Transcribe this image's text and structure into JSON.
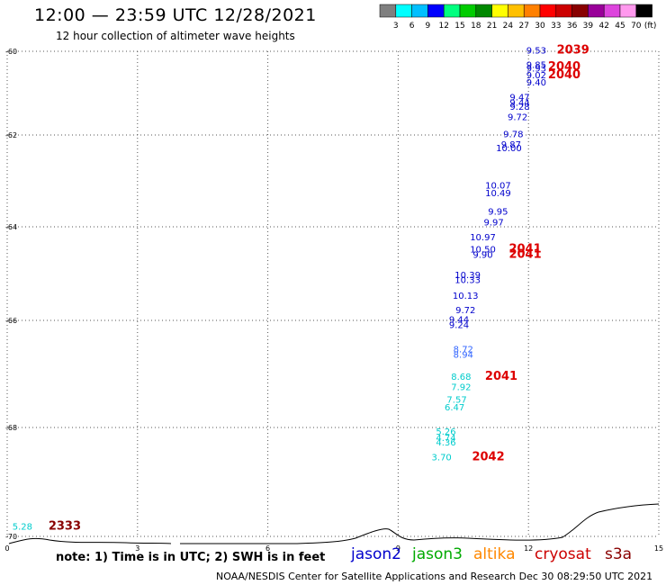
{
  "title": "12:00 — 23:59 UTC 12/28/2021",
  "subtitle": "12 hour collection of altimeter wave heights",
  "color_scale": {
    "unit": "(ft)",
    "labels": [
      "3",
      "6",
      "9",
      "12",
      "15",
      "18",
      "21",
      "24",
      "27",
      "30",
      "33",
      "36",
      "39",
      "42",
      "45",
      "70"
    ],
    "colors": [
      "#7f7f7f",
      "#00ffff",
      "#00bfff",
      "#0000ff",
      "#00ff7f",
      "#00cc00",
      "#008800",
      "#ffff00",
      "#ffc000",
      "#ff8000",
      "#ff0000",
      "#cc0000",
      "#880000",
      "#990099",
      "#dd44dd",
      "#ff99ee",
      "#000000"
    ]
  },
  "map": {
    "y_ticks": [
      "-60",
      "-62",
      "-64",
      "-66",
      "-68",
      "-70"
    ],
    "x_ticks": [
      "0",
      "3",
      "6",
      "9",
      "12",
      "15"
    ]
  },
  "wave_labels": [
    {
      "lon": 12.18,
      "lat": -60.05,
      "value": "9.53",
      "color": "#0000cc"
    },
    {
      "lon": 12.18,
      "lat": -60.4,
      "value": "9.85",
      "color": "#0000cc"
    },
    {
      "lon": 12.18,
      "lat": -60.48,
      "value": "9.93",
      "color": "#0000cc"
    },
    {
      "lon": 12.18,
      "lat": -60.65,
      "value": "9.02",
      "color": "#0000cc"
    },
    {
      "lon": 12.18,
      "lat": -60.82,
      "value": "9.40",
      "color": "#0000cc"
    },
    {
      "lon": 11.8,
      "lat": -61.17,
      "value": "9.47",
      "color": "#0000cc"
    },
    {
      "lon": 11.8,
      "lat": -61.3,
      "value": "9.44",
      "color": "#0000cc"
    },
    {
      "lon": 11.8,
      "lat": -61.4,
      "value": "9.28",
      "color": "#0000cc"
    },
    {
      "lon": 11.75,
      "lat": -61.64,
      "value": "9.72",
      "color": "#0000cc"
    },
    {
      "lon": 11.65,
      "lat": -62.05,
      "value": "9.78",
      "color": "#0000cc"
    },
    {
      "lon": 11.6,
      "lat": -62.27,
      "value": "9.87",
      "color": "#0000cc"
    },
    {
      "lon": 11.55,
      "lat": -62.35,
      "value": "10.00",
      "color": "#0000cc"
    },
    {
      "lon": 11.3,
      "lat": -63.17,
      "value": "10.07",
      "color": "#0000cc"
    },
    {
      "lon": 11.3,
      "lat": -63.33,
      "value": "10.49",
      "color": "#0000cc"
    },
    {
      "lon": 11.3,
      "lat": -63.74,
      "value": "9.95",
      "color": "#0000cc"
    },
    {
      "lon": 11.2,
      "lat": -63.97,
      "value": "9.97",
      "color": "#0000cc"
    },
    {
      "lon": 10.95,
      "lat": -64.29,
      "value": "10.97",
      "color": "#0000cc"
    },
    {
      "lon": 10.95,
      "lat": -64.55,
      "value": "10.50",
      "color": "#0000cc"
    },
    {
      "lon": 10.95,
      "lat": -64.66,
      "value": "9.90",
      "color": "#0000cc"
    },
    {
      "lon": 10.6,
      "lat": -65.1,
      "value": "10.39",
      "color": "#0000cc"
    },
    {
      "lon": 10.6,
      "lat": -65.2,
      "value": "10.33",
      "color": "#0000cc"
    },
    {
      "lon": 10.55,
      "lat": -65.54,
      "value": "10.13",
      "color": "#0000cc"
    },
    {
      "lon": 10.55,
      "lat": -65.85,
      "value": "9.72",
      "color": "#0000cc"
    },
    {
      "lon": 10.4,
      "lat": -66.04,
      "value": "9.44",
      "color": "#0000cc"
    },
    {
      "lon": 10.4,
      "lat": -66.14,
      "value": "9.24",
      "color": "#0000cc"
    },
    {
      "lon": 10.5,
      "lat": -66.6,
      "value": "8.72",
      "color": "#3366ff"
    },
    {
      "lon": 10.5,
      "lat": -66.7,
      "value": "8.94",
      "color": "#3366ff"
    },
    {
      "lon": 10.45,
      "lat": -67.11,
      "value": "8.68",
      "color": "#00cccc"
    },
    {
      "lon": 10.45,
      "lat": -67.3,
      "value": "7.92",
      "color": "#00cccc"
    },
    {
      "lon": 10.35,
      "lat": -67.54,
      "value": "7.57",
      "color": "#00cccc"
    },
    {
      "lon": 10.3,
      "lat": -67.68,
      "value": "6.47",
      "color": "#00cccc"
    },
    {
      "lon": 10.1,
      "lat": -68.13,
      "value": "5.26",
      "color": "#00cccc"
    },
    {
      "lon": 10.1,
      "lat": -68.25,
      "value": "4.74",
      "color": "#00cccc"
    },
    {
      "lon": 10.1,
      "lat": -68.33,
      "value": "4.36",
      "color": "#00cccc"
    },
    {
      "lon": 10.0,
      "lat": -68.6,
      "value": "3.70",
      "color": "#00cccc"
    },
    {
      "lon": 0.35,
      "lat": -69.88,
      "value": "5.28",
      "color": "#00cccc"
    }
  ],
  "orbit_labels": [
    {
      "lon": 12.65,
      "lat": -60.05,
      "value": "2039",
      "color": "#dd0000"
    },
    {
      "lon": 12.45,
      "lat": -60.45,
      "value": "2040",
      "color": "#dd0000"
    },
    {
      "lon": 12.45,
      "lat": -60.65,
      "value": "2040",
      "color": "#dd0000"
    },
    {
      "lon": 11.55,
      "lat": -64.55,
      "value": "2041",
      "color": "#dd0000"
    },
    {
      "lon": 11.55,
      "lat": -64.66,
      "value": "2041",
      "color": "#dd0000"
    },
    {
      "lon": 11.0,
      "lat": -67.11,
      "value": "2041",
      "color": "#dd0000"
    },
    {
      "lon": 10.7,
      "lat": -68.6,
      "value": "2042",
      "color": "#dd0000"
    },
    {
      "lon": 0.95,
      "lat": -69.88,
      "value": "2333",
      "color": "#880000"
    }
  ],
  "note": "note: 1) Time is in UTC; 2) SWH is in feet",
  "legend": [
    {
      "label": "jason2",
      "color": "#0000cc"
    },
    {
      "label": "jason3",
      "color": "#00aa00"
    },
    {
      "label": "altika",
      "color": "#ff8800"
    },
    {
      "label": "cryosat",
      "color": "#cc0000"
    },
    {
      "label": "s3a",
      "color": "#880000"
    }
  ],
  "footer": "NOAA/NESDIS Center for Satellite Applications and Research   Dec 30 08:29:50 UTC 2021"
}
